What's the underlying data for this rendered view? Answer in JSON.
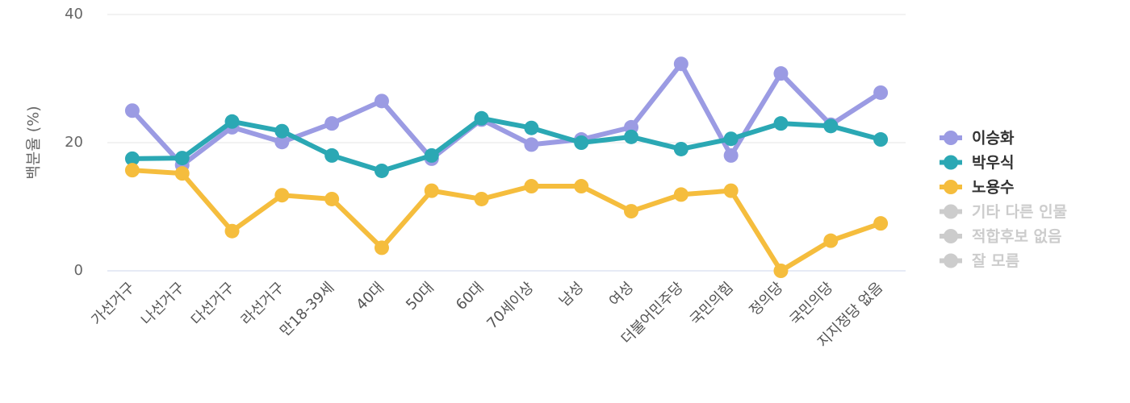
{
  "chart_data": {
    "type": "line",
    "y_label": "백분율 (%)",
    "categories": [
      "가선거구",
      "나선거구",
      "다선거구",
      "라선거구",
      "만18-39세",
      "40대",
      "50대",
      "60대",
      "70세이상",
      "남성",
      "여성",
      "더불어민주당",
      "국민의힘",
      "정의당",
      "국민의당",
      "지지정당 없음"
    ],
    "series": [
      {
        "name": "이승화",
        "color": "#9b9be3",
        "visible": true,
        "values": [
          25.0,
          16.5,
          22.4,
          20.1,
          23.0,
          26.5,
          17.5,
          23.6,
          19.7,
          20.5,
          22.4,
          32.3,
          18.0,
          30.8,
          22.8,
          27.8
        ]
      },
      {
        "name": "박우식",
        "color": "#2ba8b4",
        "visible": true,
        "values": [
          17.5,
          17.6,
          23.3,
          21.8,
          18.0,
          15.6,
          18.0,
          23.8,
          22.3,
          20.0,
          20.9,
          19.0,
          20.6,
          23.0,
          22.6,
          20.5
        ]
      },
      {
        "name": "노용수",
        "color": "#f5bd3d",
        "visible": true,
        "values": [
          15.7,
          15.2,
          6.2,
          11.8,
          11.2,
          3.6,
          12.5,
          11.2,
          13.2,
          13.2,
          9.3,
          11.9,
          12.5,
          0,
          4.7,
          7.4
        ]
      },
      {
        "name": "기타 다른 인물",
        "color": "#cccccc",
        "visible": false
      },
      {
        "name": "적합후보 없음",
        "color": "#cccccc",
        "visible": false
      },
      {
        "name": "잘 모름",
        "color": "#cccccc",
        "visible": false
      }
    ],
    "ylim": [
      0,
      40
    ],
    "yticks": [
      0,
      20,
      40
    ],
    "grid": true,
    "legend": "right"
  }
}
